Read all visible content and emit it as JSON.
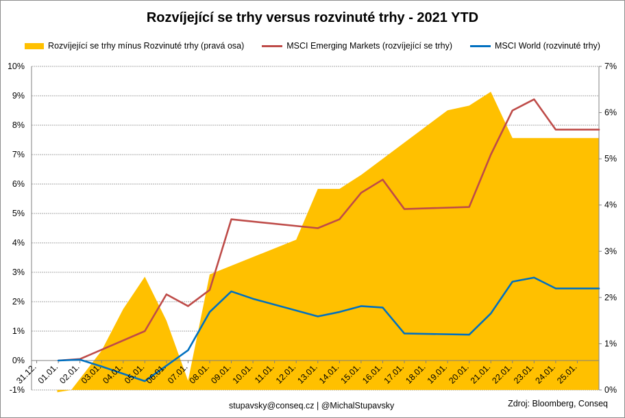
{
  "chart_data": {
    "type": "line",
    "title": "Rozvíjející se trhy versus rozvinuté trhy - 2021 YTD",
    "categories": [
      "31.12.",
      "01.01.",
      "02.01.",
      "03.01.",
      "04.01.",
      "05.01.",
      "06.01.",
      "07.01.",
      "08.01.",
      "09.01.",
      "10.01.",
      "11.01.",
      "12.01.",
      "13.01.",
      "14.01.",
      "15.01.",
      "16.01.",
      "17.01.",
      "18.01.",
      "19.01.",
      "20.01.",
      "21.01.",
      "22.01.",
      "23.01.",
      "24.01.",
      "25.01."
    ],
    "left_axis": {
      "min": -1,
      "max": 10,
      "step": 1,
      "ticks": [
        "-1%",
        "0%",
        "1%",
        "2%",
        "3%",
        "4%",
        "5%",
        "6%",
        "7%",
        "8%",
        "9%",
        "10%"
      ]
    },
    "right_axis": {
      "min": 0,
      "max": 7,
      "step": 1,
      "ticks": [
        "0%",
        "1%",
        "2%",
        "3%",
        "4%",
        "5%",
        "6%",
        "7%"
      ]
    },
    "grid": true,
    "legend_position": "top",
    "series": [
      {
        "name": "Rozvíjející se trhy mínus Rozvinuté trhy (pravá osa)",
        "kind": "area",
        "axis": "right",
        "color": "#FFC000",
        "x": [
          0.95,
          1.6,
          3.0,
          4.0,
          5.0,
          6.0,
          7.0,
          8.0,
          12.0,
          13.0,
          14.0,
          15.0,
          19.0,
          20.0,
          21.0,
          22.0,
          26.0
        ],
        "values": [
          -0.05,
          0.0,
          0.85,
          1.75,
          2.45,
          1.5,
          0.2,
          2.5,
          3.25,
          4.35,
          4.35,
          4.65,
          6.05,
          6.15,
          6.45,
          5.45,
          5.45
        ]
      },
      {
        "name": "MSCI Emerging Markets (rozvíjející se trhy)",
        "kind": "line",
        "axis": "left",
        "color": "#BE4B48",
        "x": [
          1,
          2,
          5,
          6,
          7,
          8,
          9,
          13,
          14,
          15,
          16,
          17,
          20,
          21,
          22,
          23,
          24,
          26
        ],
        "values": [
          0.0,
          0.05,
          1.0,
          2.25,
          1.85,
          2.4,
          4.8,
          4.5,
          4.8,
          5.7,
          6.15,
          5.15,
          5.22,
          7.0,
          8.5,
          8.88,
          7.85,
          7.85
        ]
      },
      {
        "name": "MSCI World (rozvinuté trhy)",
        "kind": "line",
        "axis": "left",
        "color": "#0070C0",
        "x": [
          1,
          2,
          3,
          5,
          7,
          8,
          9,
          10,
          13,
          14,
          15,
          16,
          17,
          20,
          21,
          22,
          23,
          24,
          26
        ],
        "values": [
          0.0,
          0.03,
          -0.2,
          -0.7,
          0.35,
          1.65,
          2.35,
          2.1,
          1.5,
          1.65,
          1.85,
          1.8,
          0.92,
          0.88,
          1.6,
          2.68,
          2.82,
          2.45,
          2.45
        ]
      }
    ]
  },
  "footer": {
    "contact": "stupavsky@conseq.cz  |  @MichalStupavsky",
    "source": "Zdroj: Bloomberg, Conseq"
  }
}
